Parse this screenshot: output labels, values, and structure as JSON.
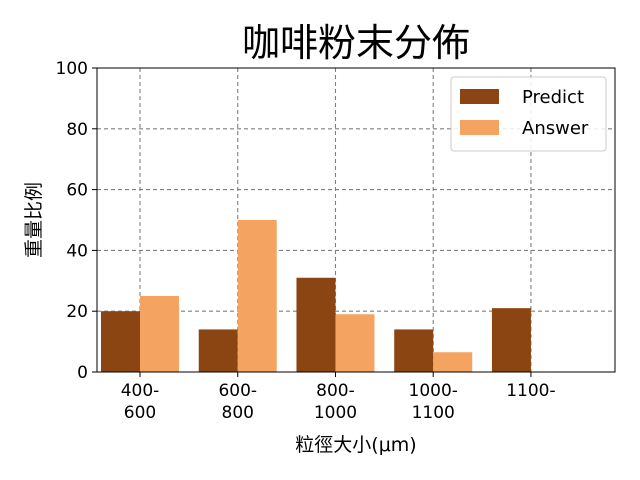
{
  "chart_data": {
    "type": "bar",
    "title": "咖啡粉末分佈",
    "xlabel": "粒徑大小(μm)",
    "ylabel": "重量比例",
    "ylim": [
      0,
      100
    ],
    "yticks": [
      0,
      20,
      40,
      60,
      80,
      100
    ],
    "grid": true,
    "legend_position": "top-right",
    "categories": [
      [
        "400-",
        "600"
      ],
      [
        "600-",
        "800"
      ],
      [
        "800-",
        "1000"
      ],
      [
        "1000-",
        "1100"
      ],
      [
        "1100-"
      ]
    ],
    "series": [
      {
        "name": "Predict",
        "color": "#8b4513",
        "values": [
          20,
          14,
          31,
          14,
          21
        ]
      },
      {
        "name": "Answer",
        "color": "#f4a460",
        "values": [
          25,
          50,
          19,
          6.5,
          0
        ]
      }
    ]
  }
}
